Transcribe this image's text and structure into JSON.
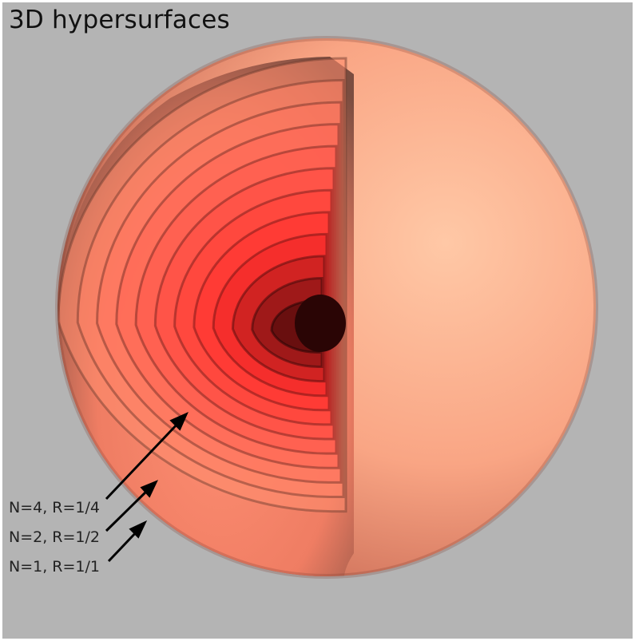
{
  "title": "3D hypersurfaces",
  "labels": [
    "N=4, R=1/4",
    "N=2, R=1/2",
    "N=1, R=1/1"
  ],
  "colors": {
    "background": "#b4b4b4",
    "sphere_light": "#ffc3a1",
    "shell_mid": "#ff7a5c",
    "core_red": "#ff2020",
    "core_dark": "#3a0808"
  }
}
